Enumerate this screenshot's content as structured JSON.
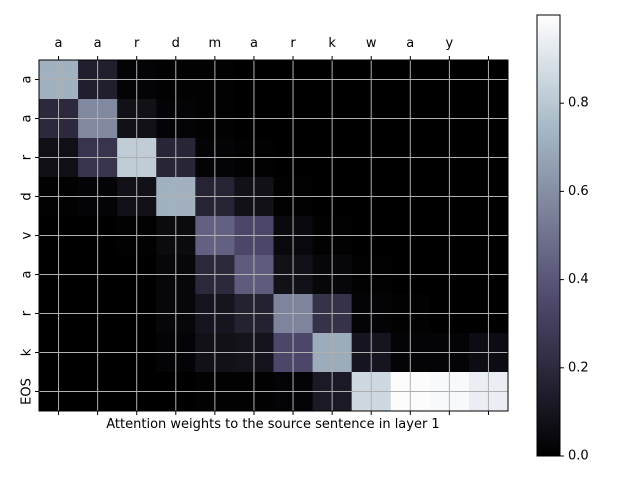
{
  "chart_data": {
    "type": "heatmap",
    "xlabel": "Attention weights to the source sentence in layer 1",
    "ylabel": "",
    "x_tick_labels": [
      "a",
      "a",
      "r",
      "d",
      "m",
      "a",
      "r",
      "k",
      "w",
      "a",
      "y",
      ""
    ],
    "y_tick_labels": [
      "a",
      "a",
      "r",
      "d",
      "v",
      "a",
      "r",
      "k",
      "EOS"
    ],
    "colormap": "bone",
    "colorbar": {
      "range": [
        0.0,
        1.0
      ],
      "ticks": [
        0.0,
        0.2,
        0.4,
        0.6,
        0.8
      ],
      "tick_labels": [
        "0.0",
        "0.2",
        "0.4",
        "0.6",
        "0.8"
      ]
    },
    "grid": true,
    "values": [
      [
        0.72,
        0.15,
        0.02,
        0.01,
        0.01,
        0.0,
        0.0,
        0.0,
        0.0,
        0.0,
        0.0,
        0.0
      ],
      [
        0.2,
        0.58,
        0.08,
        0.02,
        0.01,
        0.0,
        0.0,
        0.0,
        0.0,
        0.0,
        0.0,
        0.0
      ],
      [
        0.07,
        0.25,
        0.82,
        0.18,
        0.02,
        0.01,
        0.0,
        0.0,
        0.0,
        0.0,
        0.0,
        0.0
      ],
      [
        0.01,
        0.02,
        0.08,
        0.72,
        0.17,
        0.08,
        0.01,
        0.0,
        0.0,
        0.0,
        0.0,
        0.0
      ],
      [
        0.0,
        0.0,
        0.01,
        0.05,
        0.44,
        0.34,
        0.04,
        0.01,
        0.0,
        0.0,
        0.0,
        0.0
      ],
      [
        0.0,
        0.0,
        0.0,
        0.03,
        0.2,
        0.42,
        0.08,
        0.03,
        0.01,
        0.0,
        0.0,
        0.0
      ],
      [
        0.0,
        0.0,
        0.0,
        0.03,
        0.1,
        0.16,
        0.56,
        0.24,
        0.02,
        0.01,
        0.0,
        0.0
      ],
      [
        0.0,
        0.0,
        0.0,
        0.02,
        0.08,
        0.09,
        0.34,
        0.7,
        0.1,
        0.02,
        0.02,
        0.06
      ],
      [
        0.0,
        0.0,
        0.0,
        0.0,
        0.01,
        0.01,
        0.02,
        0.12,
        0.86,
        0.99,
        0.98,
        0.94
      ]
    ]
  }
}
